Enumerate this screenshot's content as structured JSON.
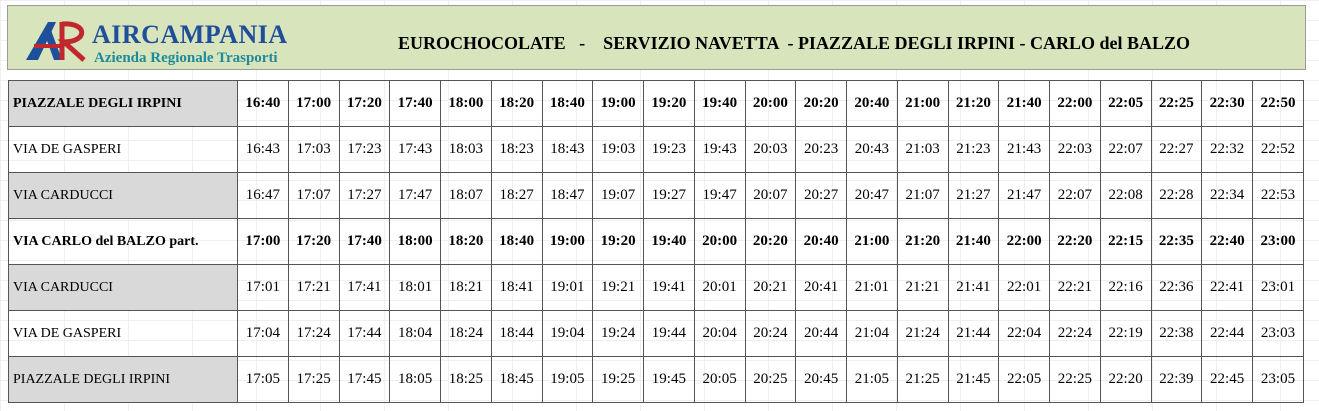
{
  "header": {
    "logo_name": "AIRCAMPANIA",
    "logo_subtitle": "Azienda Regionale Trasporti",
    "title": "EUROCHOCOLATE   -    SERVIZIO NAVETTA  - PIAZZALE DEGLI IRPINI - CARLO del BALZO"
  },
  "table": {
    "rows": [
      [
        "PIAZZALE DEGLI IRPINI",
        "16:40",
        "17:00",
        "17:20",
        "17:40",
        "18:00",
        "18:20",
        "18:40",
        "19:00",
        "19:20",
        "19:40",
        "20:00",
        "20:20",
        "20:40",
        "21:00",
        "21:20",
        "21:40",
        "22:00",
        "22:05",
        "22:25",
        "22:30",
        "22:50"
      ],
      [
        "VIA DE GASPERI",
        "16:43",
        "17:03",
        "17:23",
        "17:43",
        "18:03",
        "18:23",
        "18:43",
        "19:03",
        "19:23",
        "19:43",
        "20:03",
        "20:23",
        "20:43",
        "21:03",
        "21:23",
        "21:43",
        "22:03",
        "22:07",
        "22:27",
        "22:32",
        "22:52"
      ],
      [
        "VIA CARDUCCI",
        "16:47",
        "17:07",
        "17:27",
        "17:47",
        "18:07",
        "18:27",
        "18:47",
        "19:07",
        "19:27",
        "19:47",
        "20:07",
        "20:27",
        "20:47",
        "21:07",
        "21:27",
        "21:47",
        "22:07",
        "22:08",
        "22:28",
        "22:34",
        "22:53"
      ],
      [
        "VIA CARLO del BALZO part.",
        "17:00",
        "17:20",
        "17:40",
        "18:00",
        "18:20",
        "18:40",
        "19:00",
        "19:20",
        "19:40",
        "20:00",
        "20:20",
        "20:40",
        "21:00",
        "21:20",
        "21:40",
        "22:00",
        "22:20",
        "22:15",
        "22:35",
        "22:40",
        "23:00"
      ],
      [
        "VIA CARDUCCI",
        "17:01",
        "17:21",
        "17:41",
        "18:01",
        "18:21",
        "18:41",
        "19:01",
        "19:21",
        "19:41",
        "20:01",
        "20:21",
        "20:41",
        "21:01",
        "21:21",
        "21:41",
        "22:01",
        "22:21",
        "22:16",
        "22:36",
        "22:41",
        "23:01"
      ],
      [
        "VIA DE GASPERI",
        "17:04",
        "17:24",
        "17:44",
        "18:04",
        "18:24",
        "18:44",
        "19:04",
        "19:24",
        "19:44",
        "20:04",
        "20:24",
        "20:44",
        "21:04",
        "21:24",
        "21:44",
        "22:04",
        "22:24",
        "22:19",
        "22:38",
        "22:44",
        "23:03"
      ],
      [
        "PIAZZALE DEGLI IRPINI",
        "17:05",
        "17:25",
        "17:45",
        "18:05",
        "18:25",
        "18:45",
        "19:05",
        "19:25",
        "19:45",
        "20:05",
        "20:25",
        "20:45",
        "21:05",
        "21:25",
        "21:45",
        "22:05",
        "22:25",
        "22:20",
        "22:39",
        "22:45",
        "23:05"
      ]
    ]
  }
}
